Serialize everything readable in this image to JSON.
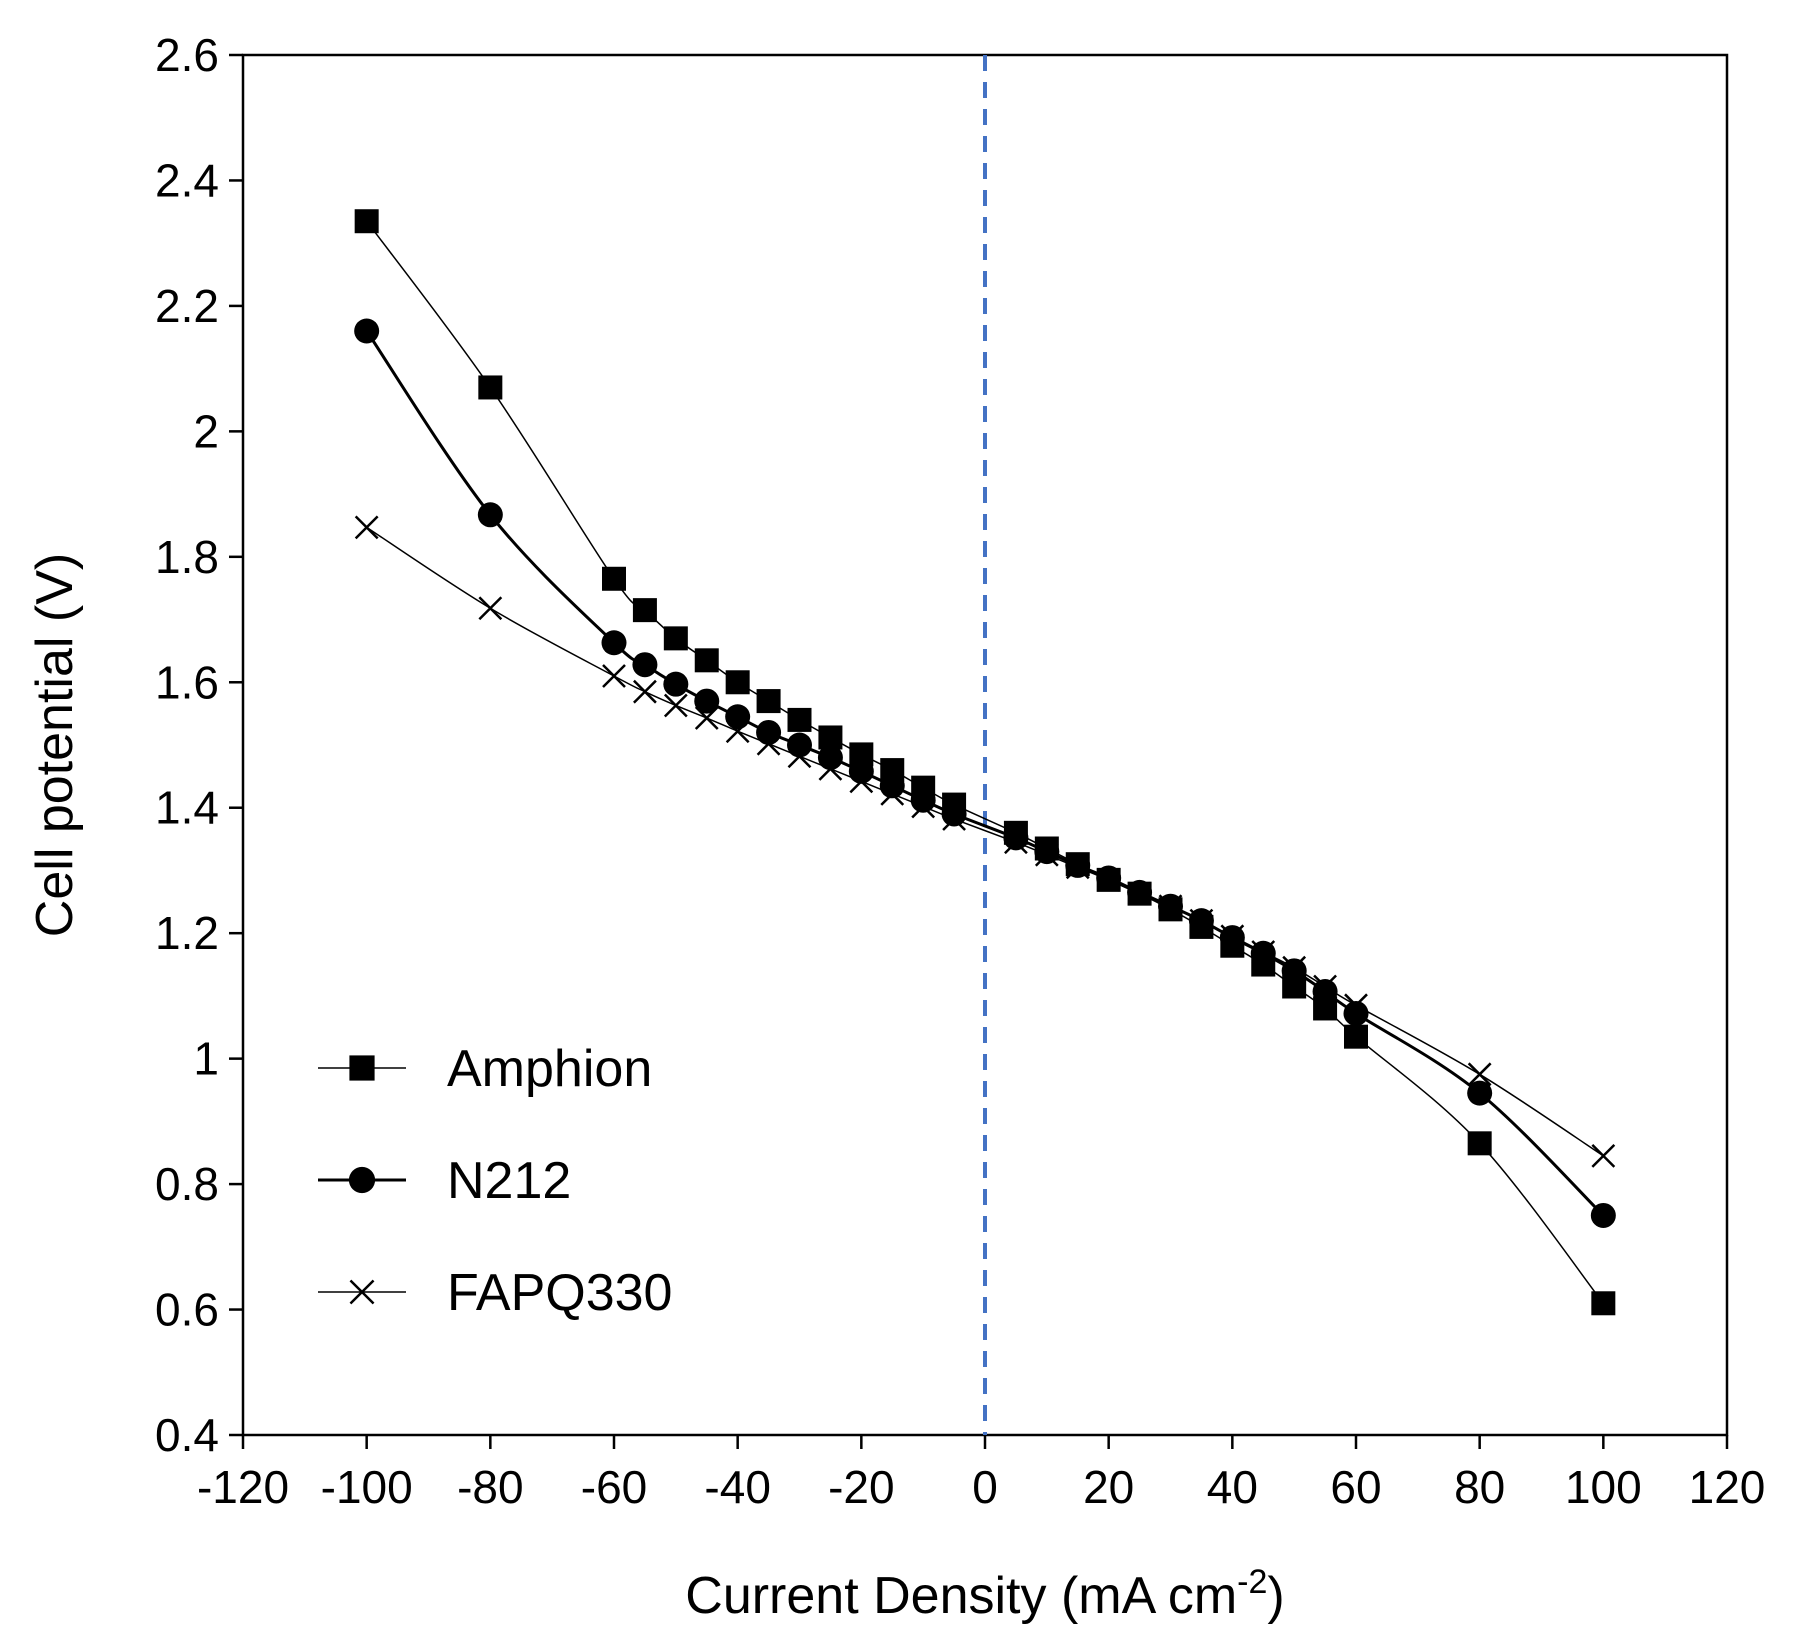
{
  "chart_data": {
    "type": "line",
    "xlabel": "Current Density (mA cm",
    "xlabel_sup": "-2",
    "xlabel_end": ")",
    "ylabel": "Cell potential (V)",
    "xlim": [
      -120,
      120
    ],
    "ylim": [
      0.4,
      2.6
    ],
    "xticks": [
      "-120",
      "-100",
      "-80",
      "-60",
      "-40",
      "-20",
      "0",
      "20",
      "40",
      "60",
      "80",
      "100",
      "120"
    ],
    "yticks": [
      "0.4",
      "0.6",
      "0.8",
      "1",
      "1.2",
      "1.4",
      "1.6",
      "1.8",
      "2",
      "2.2",
      "2.4",
      "2.6"
    ],
    "grid": false,
    "legend_position": "bottom-left",
    "reference_line": {
      "x": 0,
      "style": "dashed",
      "color": "#4472C4"
    },
    "series": [
      {
        "name": "Amphion",
        "marker": "square",
        "x": [
          -100,
          -80,
          -60,
          -55,
          -50,
          -45,
          -40,
          -35,
          -30,
          -25,
          -20,
          -15,
          -10,
          -5,
          5,
          10,
          15,
          20,
          25,
          30,
          35,
          40,
          45,
          50,
          55,
          60,
          80,
          100
        ],
        "y": [
          2.335,
          2.07,
          1.765,
          1.715,
          1.67,
          1.635,
          1.6,
          1.57,
          1.54,
          1.512,
          1.485,
          1.46,
          1.432,
          1.405,
          1.36,
          1.335,
          1.31,
          1.285,
          1.263,
          1.238,
          1.21,
          1.18,
          1.15,
          1.115,
          1.08,
          1.035,
          0.865,
          0.61
        ]
      },
      {
        "name": "N212",
        "marker": "circle",
        "x": [
          -100,
          -80,
          -60,
          -55,
          -50,
          -45,
          -40,
          -35,
          -30,
          -25,
          -20,
          -15,
          -10,
          -5,
          5,
          10,
          15,
          20,
          25,
          30,
          35,
          40,
          45,
          50,
          55,
          60,
          80,
          100
        ],
        "y": [
          2.16,
          1.867,
          1.663,
          1.628,
          1.597,
          1.57,
          1.545,
          1.52,
          1.5,
          1.48,
          1.458,
          1.435,
          1.412,
          1.39,
          1.352,
          1.33,
          1.308,
          1.288,
          1.265,
          1.243,
          1.22,
          1.193,
          1.168,
          1.14,
          1.107,
          1.072,
          0.945,
          0.75
        ]
      },
      {
        "name": "FAPQ330",
        "marker": "x",
        "x": [
          -100,
          -80,
          -60,
          -55,
          -50,
          -45,
          -40,
          -35,
          -30,
          -25,
          -20,
          -15,
          -10,
          -5,
          5,
          10,
          15,
          20,
          25,
          30,
          35,
          40,
          45,
          50,
          55,
          60,
          80,
          100
        ],
        "y": [
          1.847,
          1.718,
          1.61,
          1.585,
          1.563,
          1.543,
          1.522,
          1.502,
          1.482,
          1.462,
          1.442,
          1.422,
          1.402,
          1.382,
          1.345,
          1.325,
          1.305,
          1.285,
          1.263,
          1.243,
          1.22,
          1.195,
          1.17,
          1.145,
          1.115,
          1.085,
          0.975,
          0.845
        ]
      }
    ]
  }
}
